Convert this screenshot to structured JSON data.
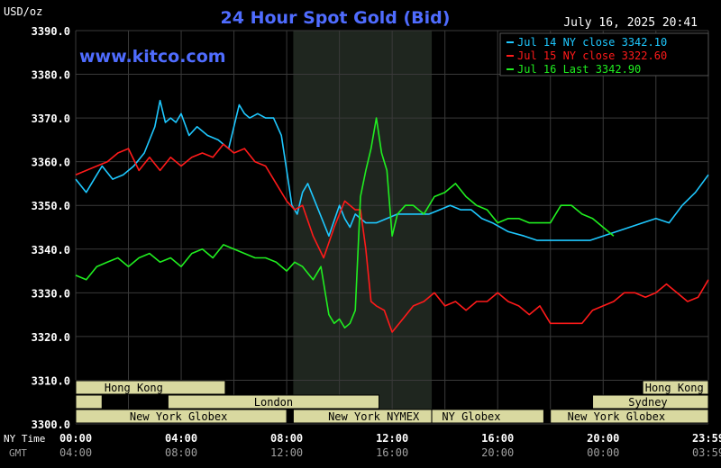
{
  "header": {
    "unit_label": "USD/oz",
    "title": "24 Hour Spot Gold (Bid)",
    "datetime": "July 16, 2025 20:41",
    "watermark": "www.kitco.com"
  },
  "colors": {
    "background": "#000000",
    "grid": "#3a3a3a",
    "title": "#4f6cff",
    "watermark": "#4f6cff",
    "axis_text": "#ffffff",
    "gmt_text": "#a0a0a0",
    "session_fill": "#d9d9a0",
    "shade": "#1f261f",
    "series_jul14": "#1ec8ff",
    "series_jul15": "#ff1a1a",
    "series_jul16": "#20ee20"
  },
  "time_axis": {
    "ny_label": "NY Time",
    "gmt_label": "GMT",
    "ny_ticks": [
      "00:00",
      "04:00",
      "08:00",
      "12:00",
      "16:00",
      "20:00",
      "23:59"
    ],
    "gmt_ticks": [
      "04:00",
      "08:00",
      "12:00",
      "16:00",
      "20:00",
      "00:00",
      "03:59"
    ]
  },
  "sessions": [
    {
      "label": "Hong Kong",
      "row": 0,
      "start": 0,
      "end": 5.67,
      "text_at": 2.2
    },
    {
      "label": "Hong Kong",
      "row": 0,
      "start": 21.5,
      "end": 23.99,
      "text_at": 22.7
    },
    {
      "label": "",
      "row": 1,
      "start": 0,
      "end": 1.0
    },
    {
      "label": "London",
      "row": 1,
      "start": 3.5,
      "end": 11.5,
      "text_at": 7.5
    },
    {
      "label": "Sydney",
      "row": 1,
      "start": 19.6,
      "end": 23.99,
      "text_at": 21.7
    },
    {
      "label": "New York Globex",
      "row": 2,
      "start": 0,
      "end": 8.0,
      "text_at": 3.9
    },
    {
      "label": "New York NYMEX",
      "row": 2,
      "start": 8.25,
      "end": 13.5,
      "text_at": 11.3
    },
    {
      "label": "NY Globex",
      "row": 2,
      "start": 13.5,
      "end": 17.75,
      "text_at": 15.0
    },
    {
      "label": "New York Globex",
      "row": 2,
      "start": 18.0,
      "end": 23.99,
      "text_at": 20.5
    }
  ],
  "chart_data": {
    "type": "line",
    "title": "24 Hour Spot Gold (Bid)",
    "ylabel": "USD/oz",
    "xlabel": "NY Time",
    "xlim": [
      0,
      23.99
    ],
    "ylim": [
      3300,
      3390
    ],
    "yticks": [
      "3300.0",
      "3310.0",
      "3320.0",
      "3330.0",
      "3340.0",
      "3350.0",
      "3360.0",
      "3370.0",
      "3380.0",
      "3390.0"
    ],
    "grid": true,
    "legend_position": "top-right",
    "shaded_region": {
      "start": 8.25,
      "end": 13.5
    },
    "series": [
      {
        "name": "Jul 14 NY close 3342.10",
        "color": "#1ec8ff",
        "x": [
          0,
          0.4,
          0.8,
          1.0,
          1.4,
          1.8,
          2.2,
          2.6,
          3.0,
          3.2,
          3.4,
          3.6,
          3.8,
          4.0,
          4.3,
          4.6,
          5.0,
          5.4,
          5.8,
          6.2,
          6.4,
          6.6,
          6.9,
          7.2,
          7.5,
          7.8,
          8.0,
          8.2,
          8.4,
          8.6,
          8.8,
          9.2,
          9.6,
          10.0,
          10.2,
          10.4,
          10.6,
          11.0,
          11.4,
          11.8,
          12.2,
          12.6,
          13.0,
          13.4,
          13.8,
          14.2,
          14.6,
          15.0,
          15.4,
          15.8,
          16.4,
          17.0,
          17.5,
          18.0,
          18.5,
          19.0,
          19.5,
          20.0,
          20.5,
          21.0,
          21.5,
          22.0,
          22.5,
          23.0,
          23.5,
          23.99
        ],
        "values": [
          3356,
          3353,
          3357,
          3359,
          3356,
          3357,
          3359,
          3362,
          3368,
          3374,
          3369,
          3370,
          3369,
          3371,
          3366,
          3368,
          3366,
          3365,
          3363,
          3373,
          3371,
          3370,
          3371,
          3370,
          3370,
          3366,
          3358,
          3350,
          3348,
          3353,
          3355,
          3349,
          3343,
          3350,
          3347,
          3345,
          3348,
          3346,
          3346,
          3347,
          3348,
          3348,
          3348,
          3348,
          3349,
          3350,
          3349,
          3349,
          3347,
          3346,
          3344,
          3343,
          3342,
          3342,
          3342,
          3342,
          3342,
          3343,
          3344,
          3345,
          3346,
          3347,
          3346,
          3350,
          3353,
          3357
        ]
      },
      {
        "name": "Jul 15 NY close 3322.60",
        "color": "#ff1a1a",
        "x": [
          0,
          0.4,
          0.8,
          1.2,
          1.6,
          2.0,
          2.4,
          2.8,
          3.2,
          3.6,
          4.0,
          4.4,
          4.8,
          5.2,
          5.6,
          6.0,
          6.4,
          6.8,
          7.2,
          7.6,
          8.0,
          8.3,
          8.6,
          9.0,
          9.4,
          9.8,
          10.2,
          10.6,
          10.8,
          11.0,
          11.2,
          11.4,
          11.7,
          12.0,
          12.4,
          12.8,
          13.2,
          13.6,
          14.0,
          14.4,
          14.8,
          15.2,
          15.6,
          16.0,
          16.4,
          16.8,
          17.2,
          17.6,
          18.0,
          18.4,
          18.8,
          19.2,
          19.6,
          20.0,
          20.4,
          20.8,
          21.2,
          21.6,
          22.0,
          22.4,
          22.8,
          23.2,
          23.6,
          23.99
        ],
        "values": [
          3357,
          3358,
          3359,
          3360,
          3362,
          3363,
          3358,
          3361,
          3358,
          3361,
          3359,
          3361,
          3362,
          3361,
          3364,
          3362,
          3363,
          3360,
          3359,
          3355,
          3351,
          3349,
          3350,
          3343,
          3338,
          3345,
          3351,
          3349,
          3349,
          3340,
          3328,
          3327,
          3326,
          3321,
          3324,
          3327,
          3328,
          3330,
          3327,
          3328,
          3326,
          3328,
          3328,
          3330,
          3328,
          3327,
          3325,
          3327,
          3323,
          3323,
          3323,
          3323,
          3326,
          3327,
          3328,
          3330,
          3330,
          3329,
          3330,
          3332,
          3330,
          3328,
          3329,
          3333
        ]
      },
      {
        "name": "Jul 16 Last 3342.90",
        "color": "#20ee20",
        "x": [
          0,
          0.4,
          0.8,
          1.2,
          1.6,
          2.0,
          2.4,
          2.8,
          3.2,
          3.6,
          4.0,
          4.4,
          4.8,
          5.2,
          5.6,
          6.0,
          6.4,
          6.8,
          7.2,
          7.6,
          8.0,
          8.3,
          8.6,
          9.0,
          9.3,
          9.6,
          9.8,
          10.0,
          10.2,
          10.4,
          10.6,
          10.8,
          11.0,
          11.2,
          11.4,
          11.6,
          11.8,
          12.0,
          12.2,
          12.5,
          12.8,
          13.2,
          13.6,
          14.0,
          14.4,
          14.8,
          15.2,
          15.6,
          16.0,
          16.4,
          16.8,
          17.2,
          17.6,
          18.0,
          18.4,
          18.8,
          19.2,
          19.6,
          20.0,
          20.4
        ],
        "values": [
          3334,
          3333,
          3336,
          3337,
          3338,
          3336,
          3338,
          3339,
          3337,
          3338,
          3336,
          3339,
          3340,
          3338,
          3341,
          3340,
          3339,
          3338,
          3338,
          3337,
          3335,
          3337,
          3336,
          3333,
          3336,
          3325,
          3323,
          3324,
          3322,
          3323,
          3326,
          3352,
          3358,
          3363,
          3370,
          3362,
          3358,
          3343,
          3348,
          3350,
          3350,
          3348,
          3352,
          3353,
          3355,
          3352,
          3350,
          3349,
          3346,
          3347,
          3347,
          3346,
          3346,
          3346,
          3350,
          3350,
          3348,
          3347,
          3345,
          3343
        ]
      }
    ]
  }
}
